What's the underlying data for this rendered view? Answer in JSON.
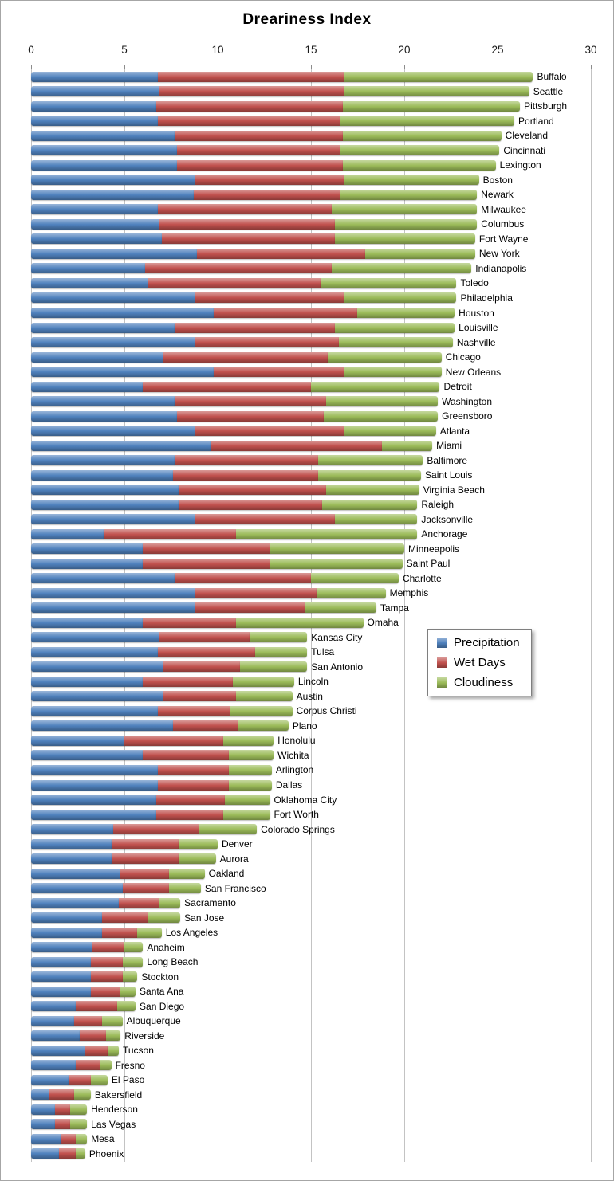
{
  "chart_data": {
    "type": "bar",
    "orientation": "horizontal",
    "stacked": true,
    "title": "Dreariness Index",
    "xlabel": "",
    "ylabel": "",
    "xlim": [
      0,
      30
    ],
    "xticks": [
      0,
      5,
      10,
      15,
      20,
      25,
      30
    ],
    "grid": true,
    "legend_position": "middle-right",
    "categories": [
      "Buffalo",
      "Seattle",
      "Pittsburgh",
      "Portland",
      "Cleveland",
      "Cincinnati",
      "Lexington",
      "Boston",
      "Newark",
      "Milwaukee",
      "Columbus",
      "Fort Wayne",
      "New York",
      "Indianapolis",
      "Toledo",
      "Philadelphia",
      "Houston",
      "Louisville",
      "Nashville",
      "Chicago",
      "New Orleans",
      "Detroit",
      "Washington",
      "Greensboro",
      "Atlanta",
      "Miami",
      "Baltimore",
      "Saint Louis",
      "Virginia Beach",
      "Raleigh",
      "Jacksonville",
      "Anchorage",
      "Minneapolis",
      "Saint Paul",
      "Charlotte",
      "Memphis",
      "Tampa",
      "Omaha",
      "Kansas City",
      "Tulsa",
      "San Antonio",
      "Lincoln",
      "Austin",
      "Corpus Christi",
      "Plano",
      "Honolulu",
      "Wichita",
      "Arlington",
      "Dallas",
      "Oklahoma City",
      "Fort Worth",
      "Colorado Springs",
      "Denver",
      "Aurora",
      "Oakland",
      "San Francisco",
      "Sacramento",
      "San Jose",
      "Los Angeles",
      "Anaheim",
      "Long Beach",
      "Stockton",
      "Santa Ana",
      "San Diego",
      "Albuquerque",
      "Riverside",
      "Tucson",
      "Fresno",
      "El Paso",
      "Bakersfield",
      "Henderson",
      "Las Vegas",
      "Mesa",
      "Phoenix"
    ],
    "series": [
      {
        "name": "Precipitation",
        "color": "#4F81BD",
        "values": [
          6.8,
          6.9,
          6.7,
          6.8,
          7.7,
          7.8,
          7.8,
          8.8,
          8.7,
          6.8,
          6.9,
          7.0,
          8.9,
          6.1,
          6.3,
          8.8,
          9.8,
          7.7,
          8.8,
          7.1,
          9.8,
          6.0,
          7.7,
          7.8,
          8.8,
          9.6,
          7.7,
          7.6,
          7.9,
          7.9,
          8.8,
          3.9,
          6.0,
          6.0,
          7.7,
          8.8,
          8.8,
          6.0,
          6.9,
          6.8,
          7.1,
          6.0,
          7.1,
          6.8,
          7.6,
          5.0,
          6.0,
          6.8,
          6.8,
          6.7,
          6.7,
          4.4,
          4.3,
          4.3,
          4.8,
          4.9,
          4.7,
          3.8,
          3.8,
          3.3,
          3.2,
          3.2,
          3.2,
          2.4,
          2.3,
          2.6,
          2.9,
          2.4,
          2.0,
          1.0,
          1.3,
          1.3,
          1.6,
          1.5
        ]
      },
      {
        "name": "Wet Days",
        "color": "#C0504D",
        "values": [
          10.0,
          9.9,
          10.0,
          9.8,
          9.0,
          8.8,
          8.9,
          8.0,
          7.9,
          9.3,
          9.4,
          9.3,
          9.0,
          10.0,
          9.2,
          8.0,
          7.7,
          8.6,
          7.7,
          8.8,
          7.0,
          9.0,
          8.1,
          7.9,
          8.0,
          9.2,
          7.7,
          7.8,
          7.9,
          7.7,
          7.5,
          7.1,
          6.8,
          6.8,
          7.3,
          6.5,
          5.9,
          5.0,
          4.8,
          5.2,
          4.1,
          4.8,
          3.9,
          3.9,
          3.5,
          5.3,
          4.6,
          3.8,
          3.8,
          3.7,
          3.6,
          4.6,
          3.6,
          3.6,
          2.6,
          2.5,
          2.2,
          2.5,
          1.9,
          1.7,
          1.7,
          1.7,
          1.6,
          2.2,
          1.5,
          1.4,
          1.2,
          1.3,
          1.2,
          1.3,
          0.8,
          0.8,
          0.8,
          0.9
        ]
      },
      {
        "name": "Cloudiness",
        "color": "#9BBB59",
        "values": [
          10.1,
          9.9,
          9.5,
          9.3,
          8.5,
          8.5,
          8.2,
          7.2,
          7.3,
          7.8,
          7.6,
          7.5,
          5.9,
          7.5,
          7.3,
          6.0,
          5.2,
          6.4,
          6.1,
          6.1,
          5.2,
          6.9,
          6.0,
          6.1,
          4.9,
          2.7,
          5.6,
          5.5,
          5.0,
          5.1,
          4.4,
          9.7,
          7.2,
          7.1,
          4.7,
          3.7,
          3.8,
          6.8,
          3.1,
          2.8,
          3.6,
          3.3,
          3.0,
          3.3,
          2.7,
          2.7,
          2.4,
          2.3,
          2.3,
          2.4,
          2.5,
          3.1,
          2.1,
          2.0,
          1.9,
          1.7,
          1.1,
          1.7,
          1.3,
          1.0,
          1.1,
          0.8,
          0.8,
          1.0,
          1.1,
          0.8,
          0.6,
          0.6,
          0.9,
          0.9,
          0.9,
          0.9,
          0.6,
          0.5
        ]
      }
    ]
  }
}
